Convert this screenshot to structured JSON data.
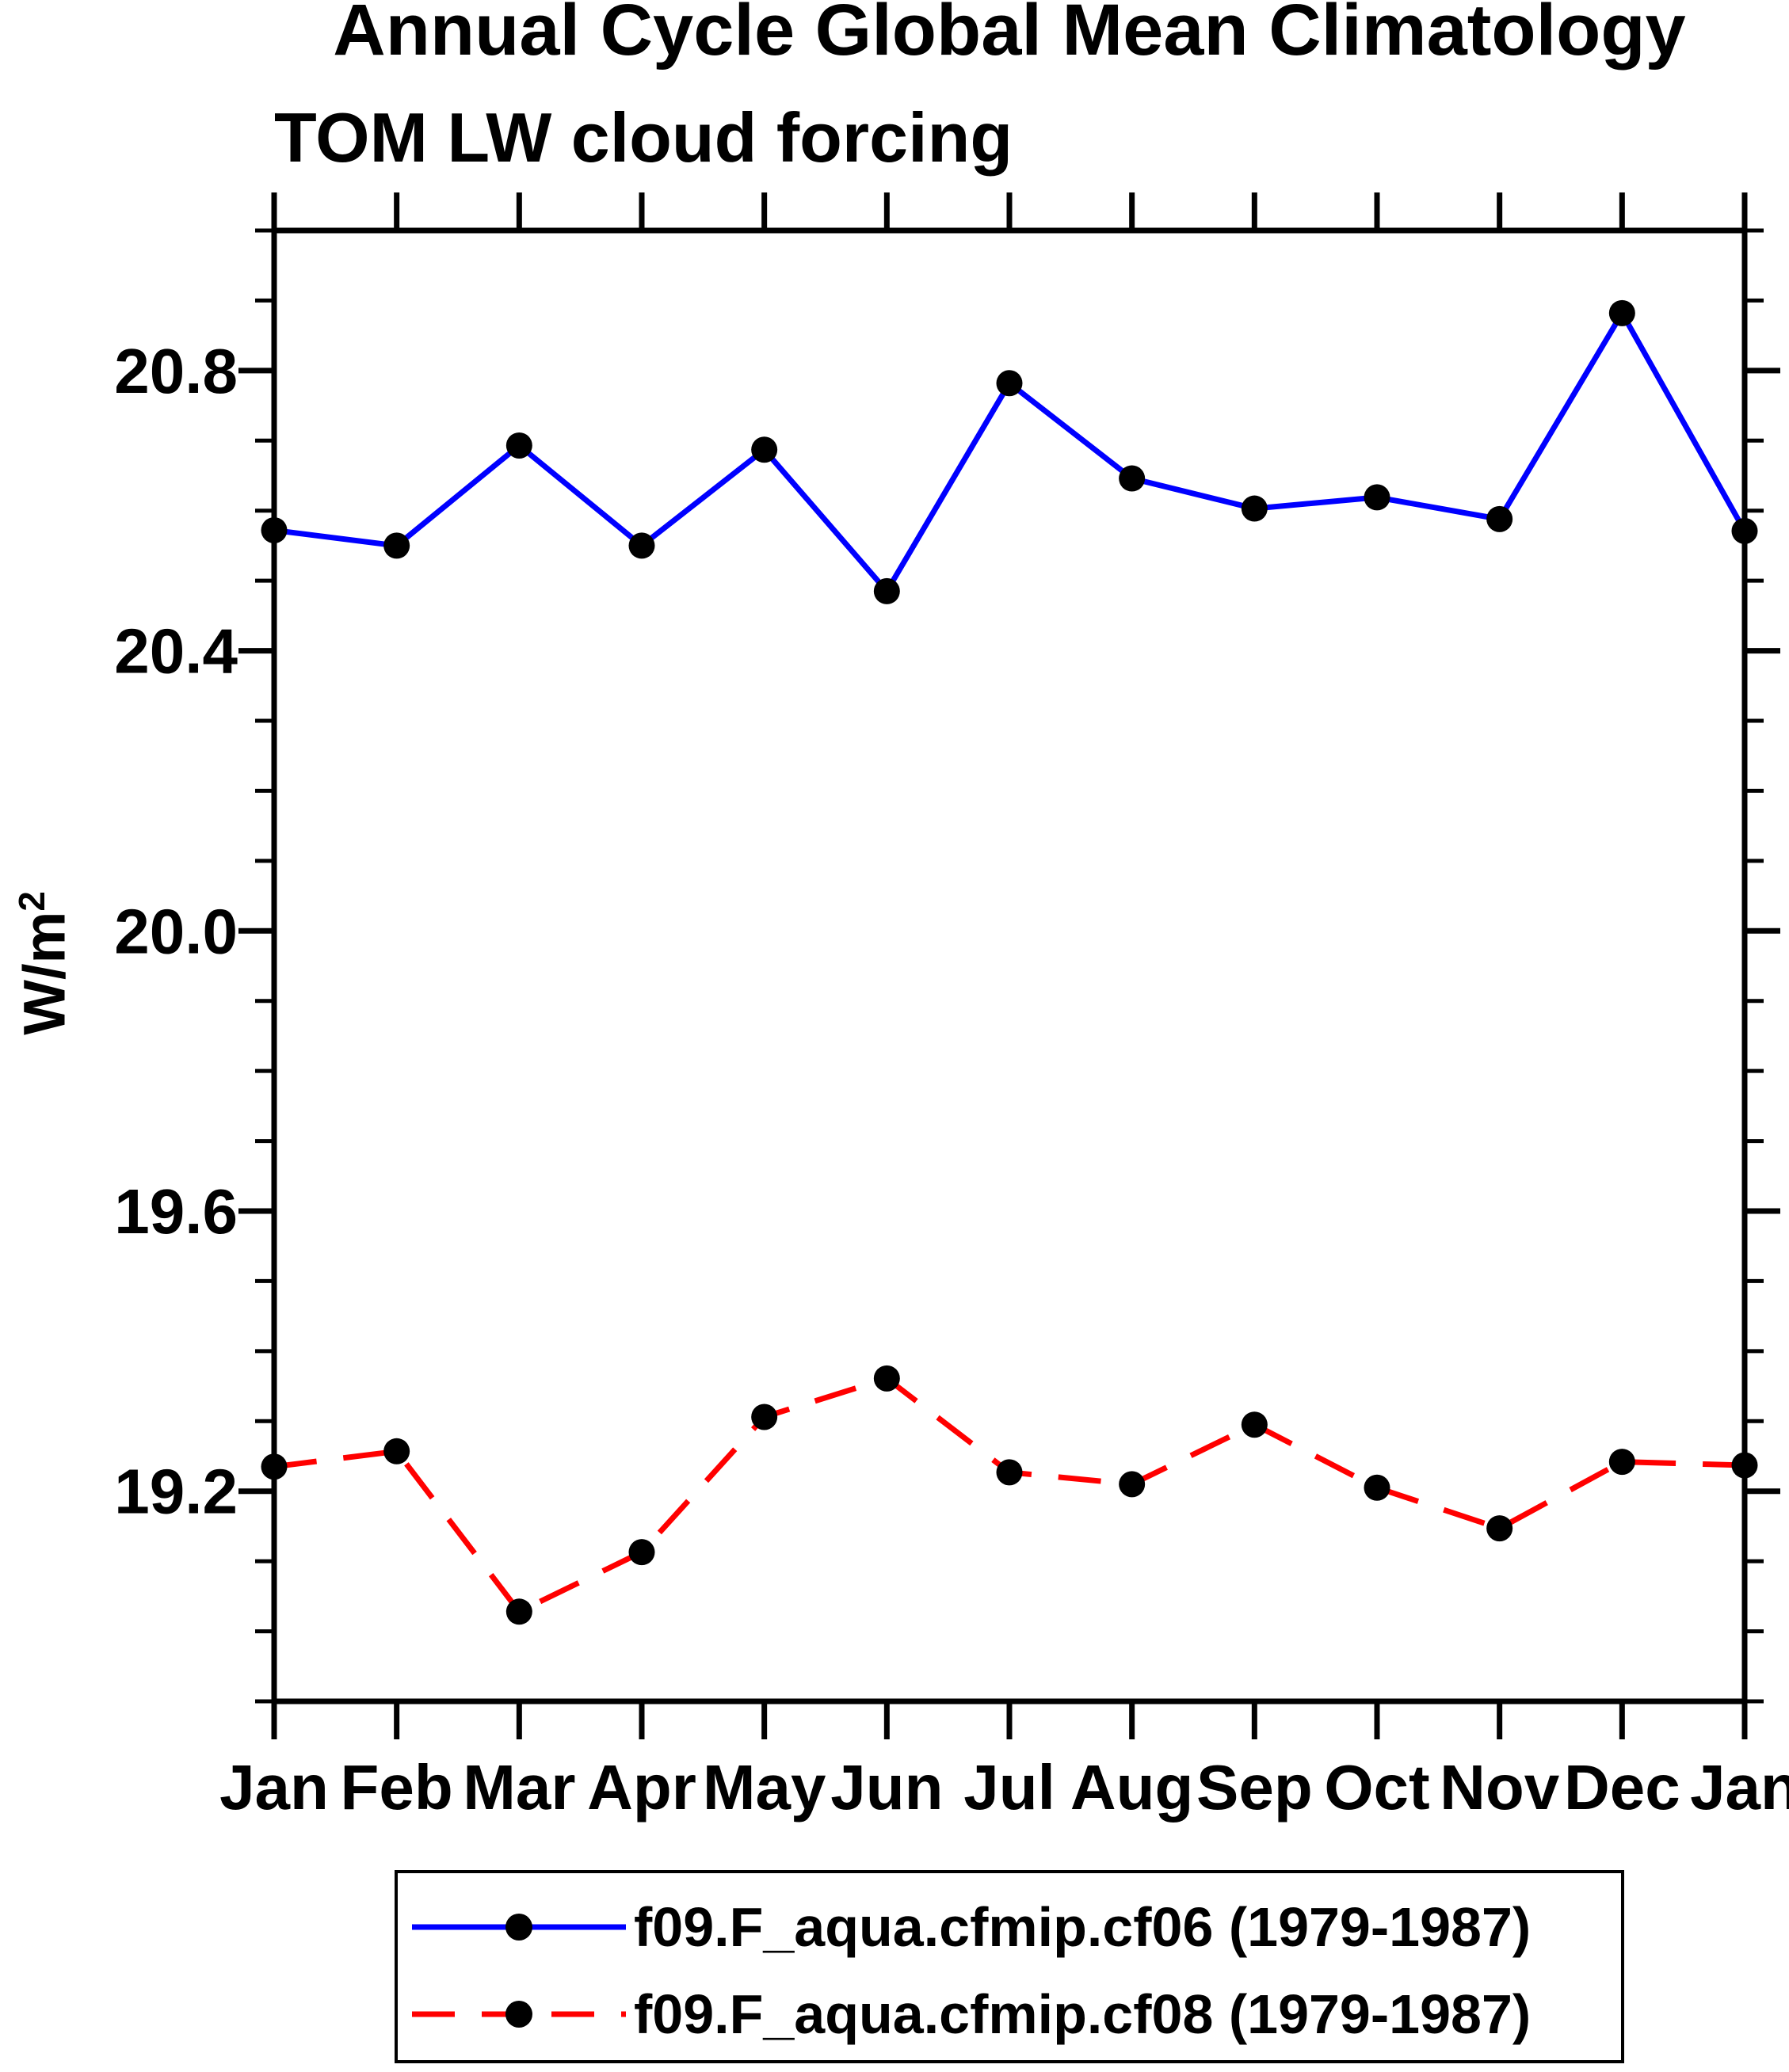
{
  "chart": {
    "title": "Annual Cycle Global Mean Climatology",
    "subtitle": "TOM LW cloud forcing",
    "ylabel_base": "W/m",
    "ylabel_exp": "2"
  },
  "legend": {
    "items": [
      {
        "label": "f09.F_aqua.cfmip.cf06 (1979-1987)",
        "color": "#0000ff",
        "style": "solid",
        "marker_color": "#000000"
      },
      {
        "label": "f09.F_aqua.cfmip.cf08 (1979-1987)",
        "color": "#ff0000",
        "style": "dashed",
        "marker_color": "#000000"
      }
    ]
  },
  "chart_data": {
    "type": "line",
    "title": "Annual Cycle Global Mean Climatology",
    "subtitle": "TOM LW cloud forcing",
    "xlabel": "",
    "ylabel": "W/m^2",
    "categories": [
      "Jan",
      "Feb",
      "Mar",
      "Apr",
      "May",
      "Jun",
      "Jul",
      "Aug",
      "Sep",
      "Oct",
      "Nov",
      "Dec",
      "Jan"
    ],
    "ylim": [
      18.9,
      21.0
    ],
    "y_major_ticks": [
      19.2,
      19.6,
      20.0,
      20.4,
      20.8
    ],
    "y_minor_step": 0.1,
    "grid": false,
    "legend_position": "bottom",
    "frame_color": "#000000",
    "series": [
      {
        "name": "f09.F_aqua.cfmip.cf06 (1979-1987)",
        "color": "#0000ff",
        "style": "solid",
        "marker": "circle",
        "marker_color": "#000000",
        "values": [
          20.572,
          20.55,
          20.693,
          20.55,
          20.687,
          20.485,
          20.782,
          20.646,
          20.603,
          20.619,
          20.588,
          20.882,
          20.571
        ]
      },
      {
        "name": "f09.F_aqua.cfmip.cf08 (1979-1987)",
        "color": "#ff0000",
        "style": "dashed",
        "marker": "circle",
        "marker_color": "#000000",
        "values": [
          19.235,
          19.257,
          19.028,
          19.113,
          19.306,
          19.361,
          19.227,
          19.21,
          19.295,
          19.205,
          19.147,
          19.242,
          19.237
        ]
      }
    ]
  }
}
